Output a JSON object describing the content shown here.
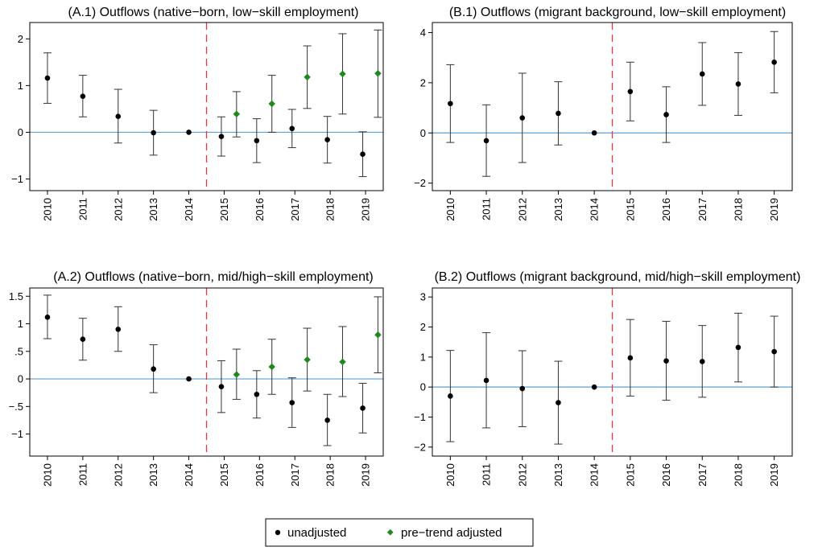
{
  "colors": {
    "zero_line": "#5aa0d8",
    "event_line": "#e8363b",
    "unadjusted": "#000000",
    "adjusted": "#1e8a1e",
    "errorbar": "#333333"
  },
  "legend": {
    "placement": "bottom-center",
    "items": [
      {
        "label": "unadjusted",
        "marker": "circle",
        "color": "#000000"
      },
      {
        "label": "pre−trend adjusted",
        "marker": "diamond",
        "color": "#1e8a1e"
      }
    ]
  },
  "chart_data": [
    {
      "type": "scatter",
      "title": "(A.1) Outflows (native−born, low−skill employment)",
      "categories": [
        "2010",
        "2011",
        "2012",
        "2013",
        "2014",
        "2015",
        "2016",
        "2017",
        "2018",
        "2019"
      ],
      "ylim": [
        -1.25,
        2.35
      ],
      "yticks": [
        -1,
        0,
        1,
        2
      ],
      "yticklabels": [
        "−1",
        "0",
        "1",
        "2"
      ],
      "event_line_between": [
        "2014",
        "2015"
      ],
      "series": [
        {
          "name": "unadjusted",
          "values": [
            1.16,
            0.77,
            0.34,
            -0.01,
            0.0,
            -0.09,
            -0.18,
            0.08,
            -0.16,
            -0.47
          ],
          "lower": [
            0.62,
            0.33,
            -0.23,
            -0.49,
            0.0,
            -0.51,
            -0.65,
            -0.33,
            -0.66,
            -0.95
          ],
          "upper": [
            1.7,
            1.22,
            0.92,
            0.47,
            0.0,
            0.33,
            0.29,
            0.49,
            0.34,
            0.01
          ]
        },
        {
          "name": "pre−trend adjusted",
          "values": [
            null,
            null,
            null,
            null,
            null,
            0.39,
            0.61,
            1.18,
            1.25,
            1.26
          ],
          "lower": [
            null,
            null,
            null,
            null,
            null,
            -0.1,
            0.0,
            0.51,
            0.39,
            0.32
          ],
          "upper": [
            null,
            null,
            null,
            null,
            null,
            0.87,
            1.22,
            1.85,
            2.11,
            2.19
          ]
        }
      ]
    },
    {
      "type": "scatter",
      "title": "(B.1) Outflows (migrant background, low−skill employment)",
      "categories": [
        "2010",
        "2011",
        "2012",
        "2013",
        "2014",
        "2015",
        "2016",
        "2017",
        "2018",
        "2019"
      ],
      "ylim": [
        -2.3,
        4.4
      ],
      "yticks": [
        -2,
        0,
        2,
        4
      ],
      "yticklabels": [
        "−2",
        "0",
        "2",
        "4"
      ],
      "event_line_between": [
        "2014",
        "2015"
      ],
      "series": [
        {
          "name": "unadjusted",
          "values": [
            1.17,
            -0.31,
            0.6,
            0.78,
            0.0,
            1.65,
            0.73,
            2.35,
            1.95,
            2.82
          ],
          "lower": [
            -0.38,
            -1.73,
            -1.18,
            -0.48,
            0.0,
            0.48,
            -0.38,
            1.1,
            0.7,
            1.6
          ],
          "upper": [
            2.72,
            1.12,
            2.38,
            2.04,
            0.0,
            2.82,
            1.84,
            3.6,
            3.2,
            4.04
          ]
        }
      ]
    },
    {
      "type": "scatter",
      "title": "(A.2) Outflows (native−born, mid/high−skill employment)",
      "categories": [
        "2010",
        "2011",
        "2012",
        "2013",
        "2014",
        "2015",
        "2016",
        "2017",
        "2018",
        "2019"
      ],
      "ylim": [
        -1.4,
        1.65
      ],
      "yticks": [
        -1,
        -0.5,
        0,
        0.5,
        1,
        1.5
      ],
      "yticklabels": [
        "−1",
        "−.5",
        "0",
        ".5",
        "1",
        "1.5"
      ],
      "event_line_between": [
        "2014",
        "2015"
      ],
      "series": [
        {
          "name": "unadjusted",
          "values": [
            1.12,
            0.72,
            0.9,
            0.18,
            0.0,
            -0.14,
            -0.28,
            -0.43,
            -0.75,
            -0.53
          ],
          "lower": [
            0.73,
            0.34,
            0.5,
            -0.25,
            0.0,
            -0.61,
            -0.71,
            -0.88,
            -1.21,
            -0.98
          ],
          "upper": [
            1.52,
            1.1,
            1.31,
            0.62,
            0.0,
            0.33,
            0.15,
            0.02,
            -0.28,
            -0.08
          ]
        },
        {
          "name": "pre−trend adjusted",
          "values": [
            null,
            null,
            null,
            null,
            null,
            0.08,
            0.22,
            0.35,
            0.31,
            0.8
          ],
          "lower": [
            null,
            null,
            null,
            null,
            null,
            -0.37,
            -0.28,
            -0.22,
            -0.32,
            0.11
          ],
          "upper": [
            null,
            null,
            null,
            null,
            null,
            0.54,
            0.72,
            0.92,
            0.95,
            1.49
          ]
        }
      ]
    },
    {
      "type": "scatter",
      "title": "(B.2) Outflows (migrant background, mid/high−skill employment)",
      "categories": [
        "2010",
        "2011",
        "2012",
        "2013",
        "2014",
        "2015",
        "2016",
        "2017",
        "2018",
        "2019"
      ],
      "ylim": [
        -2.3,
        3.3
      ],
      "yticks": [
        -2,
        -1,
        0,
        1,
        2,
        3
      ],
      "yticklabels": [
        "−2",
        "−1",
        "0",
        "1",
        "2",
        "3"
      ],
      "event_line_between": [
        "2014",
        "2015"
      ],
      "series": [
        {
          "name": "unadjusted",
          "values": [
            -0.3,
            0.22,
            -0.05,
            -0.52,
            0.0,
            0.97,
            0.87,
            0.85,
            1.32,
            1.18
          ],
          "lower": [
            -1.82,
            -1.36,
            -1.32,
            -1.9,
            0.0,
            -0.3,
            -0.44,
            -0.34,
            0.17,
            0.0
          ],
          "upper": [
            1.22,
            1.81,
            1.21,
            0.86,
            0.0,
            2.25,
            2.19,
            2.05,
            2.46,
            2.36
          ]
        }
      ]
    }
  ]
}
